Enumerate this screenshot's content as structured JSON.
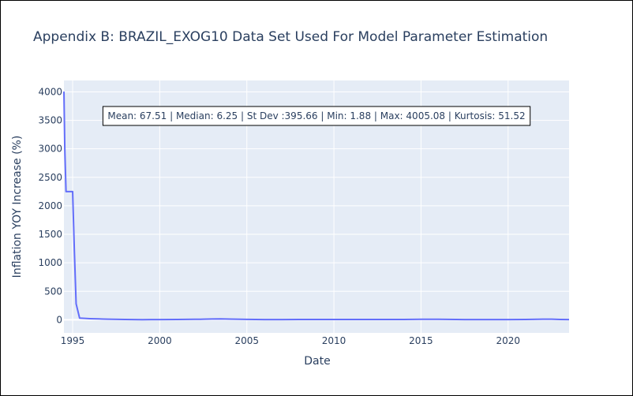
{
  "chart_data": {
    "type": "line",
    "title": "Appendix B: BRAZIL_EXOG10 Data Set Used For Model Parameter Estimation",
    "xlabel": "Date",
    "ylabel": "Inflation YOY Increase (%)",
    "xlim": [
      1994.5,
      2023.5
    ],
    "ylim": [
      -230,
      4200
    ],
    "x_ticks": [
      1995,
      2000,
      2005,
      2010,
      2015,
      2020
    ],
    "x_tick_labels": [
      "1995",
      "2000",
      "2005",
      "2010",
      "2015",
      "2020"
    ],
    "y_ticks": [
      0,
      500,
      1000,
      1500,
      2000,
      2500,
      3000,
      3500,
      4000
    ],
    "y_tick_labels": [
      "0",
      "500",
      "1000",
      "1500",
      "2000",
      "2500",
      "3000",
      "3500",
      "4000"
    ],
    "grid": true,
    "legend": "none",
    "annotation": "Mean: 67.51 | Median: 6.25 | St Dev :395.66 | Min: 1.88 | Max: 4005.08 | Kurtosis: 51.52",
    "colors": {
      "line": "#636efa",
      "plot_bg": "#e5ecf6",
      "grid": "#ffffff",
      "text": "#2a3f5f"
    },
    "series": [
      {
        "x": [
          1994.5,
          1994.55,
          1994.62,
          1994.75,
          1995.0,
          1995.1,
          1995.2,
          1995.4,
          1996.0,
          1996.5,
          1997.0,
          1998.0,
          1999.0,
          1999.5,
          2000.0,
          2001.0,
          2002.0,
          2002.5,
          2003.0,
          2003.5,
          2004.0,
          2005.0,
          2006.0,
          2007.0,
          2008.0,
          2009.0,
          2010.0,
          2011.0,
          2012.0,
          2013.0,
          2014.0,
          2015.0,
          2016.0,
          2017.0,
          2017.5,
          2018.0,
          2019.0,
          2020.0,
          2021.0,
          2022.0,
          2022.5,
          2023.0,
          2023.5
        ],
        "y": [
          4005.08,
          3000,
          2250,
          2250,
          2250,
          1200,
          280,
          30,
          20,
          15,
          10,
          5,
          2,
          3,
          4,
          6,
          8,
          10,
          14,
          15,
          12,
          7,
          4,
          4,
          6,
          5,
          5,
          6,
          5,
          6,
          6,
          9,
          8,
          5,
          3,
          3,
          4,
          3,
          6,
          10,
          11,
          6,
          4
        ]
      }
    ]
  }
}
